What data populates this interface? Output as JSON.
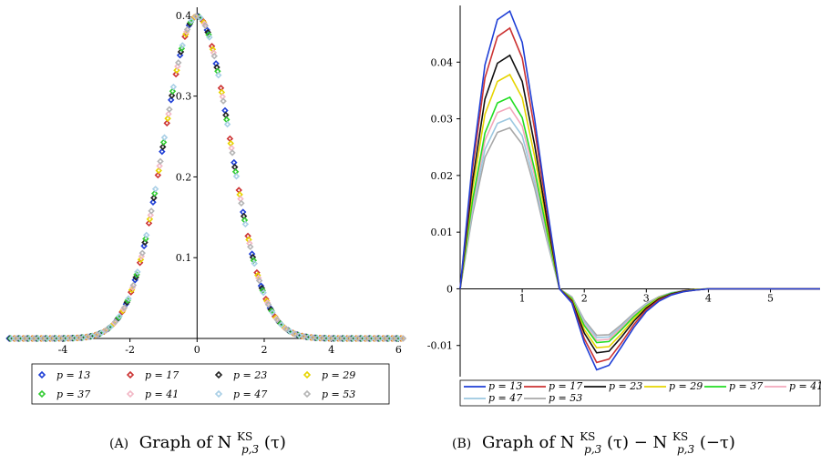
{
  "figure": {
    "caption_a": {
      "tag": "(A)",
      "text": "Graph of N",
      "sup": "KS",
      "sub": "p,3",
      "arg": "(τ)"
    },
    "caption_b": {
      "tag": "(B)",
      "text": "Graph of N",
      "sup": "KS",
      "sub": "p,3",
      "arg": "(τ) − N",
      "sup2": "KS",
      "sub2": "p,3",
      "arg2": "(−τ)"
    }
  },
  "chart_data": [
    {
      "type": "scatter",
      "title": "",
      "xlabel": "",
      "ylabel": "",
      "xlim": [
        -5.6,
        6.1
      ],
      "ylim": [
        0,
        0.41
      ],
      "xticks": [
        -4,
        -2,
        0,
        2,
        4,
        6
      ],
      "xtick_labels": [
        "-4",
        "-2",
        "0",
        "2",
        "4",
        "6"
      ],
      "yticks": [
        0.1,
        0.2,
        0.3,
        0.4
      ],
      "ytick_labels": [
        "0.1",
        "0.2",
        "0.3",
        "0.4"
      ],
      "legend_position": "bottom",
      "series": [
        {
          "name": "p = 13",
          "color": "#1f3fd6"
        },
        {
          "name": "p = 17",
          "color": "#cc3333"
        },
        {
          "name": "p = 23",
          "color": "#222222"
        },
        {
          "name": "p = 29",
          "color": "#e6d400"
        },
        {
          "name": "p = 37",
          "color": "#33cc33"
        },
        {
          "name": "p = 41",
          "color": "#f2b8c6"
        },
        {
          "name": "p = 47",
          "color": "#a9cfe6"
        },
        {
          "name": "p = 53",
          "color": "#b5b5b5"
        }
      ],
      "shape": "standard normal density approximation",
      "x_start": -5.6,
      "x_step": 0.134
    },
    {
      "type": "line",
      "title": "",
      "xlabel": "",
      "ylabel": "",
      "xlim": [
        0,
        5.8
      ],
      "ylim": [
        -0.0155,
        0.05
      ],
      "xticks": [
        1,
        2,
        3,
        4,
        5
      ],
      "xtick_labels": [
        "1",
        "2",
        "3",
        "4",
        "5"
      ],
      "yticks": [
        -0.01,
        0,
        0.01,
        0.02,
        0.03,
        0.04
      ],
      "ytick_labels": [
        "-0.01",
        "0",
        "0.01",
        "0.02",
        "0.03",
        "0.04"
      ],
      "legend_position": "bottom",
      "x": [
        0,
        0.2,
        0.4,
        0.6,
        0.8,
        1.0,
        1.2,
        1.4,
        1.6,
        1.8,
        2.0,
        2.2,
        2.4,
        2.6,
        2.8,
        3.0,
        3.2,
        3.4,
        3.6,
        3.8,
        4.0,
        4.2,
        4.4,
        4.6,
        4.8,
        5.0,
        5.2,
        5.4,
        5.6,
        5.8
      ],
      "series": [
        {
          "name": "p = 13",
          "color": "#1f3fd6",
          "values": [
            0,
            0.0225,
            0.0395,
            0.0475,
            0.049,
            0.0435,
            0.03,
            0.0145,
            0.0,
            -0.0025,
            -0.0095,
            -0.0143,
            -0.0135,
            -0.0102,
            -0.0068,
            -0.004,
            -0.0022,
            -0.0011,
            -0.0005,
            -0.0002,
            0,
            0,
            0,
            0,
            0,
            0,
            0,
            0,
            0,
            0
          ]
        },
        {
          "name": "p = 17",
          "color": "#cc3333",
          "values": [
            0,
            0.0212,
            0.0372,
            0.0445,
            0.046,
            0.0407,
            0.0282,
            0.0136,
            0.0,
            -0.0023,
            -0.0088,
            -0.013,
            -0.0124,
            -0.0095,
            -0.0063,
            -0.0037,
            -0.002,
            -0.001,
            -0.0005,
            -0.0002,
            0,
            0,
            0,
            0,
            0,
            0,
            0,
            0,
            0,
            0
          ]
        },
        {
          "name": "p = 23",
          "color": "#111111",
          "values": [
            0,
            0.019,
            0.0335,
            0.0398,
            0.0412,
            0.0366,
            0.0254,
            0.0122,
            0.0,
            -0.0021,
            -0.0078,
            -0.0113,
            -0.011,
            -0.0085,
            -0.0057,
            -0.0034,
            -0.0018,
            -0.0009,
            -0.0004,
            -0.0002,
            0,
            0,
            0,
            0,
            0,
            0,
            0,
            0,
            0,
            0
          ]
        },
        {
          "name": "p = 29",
          "color": "#e6d400",
          "values": [
            0,
            0.0175,
            0.0308,
            0.0366,
            0.0378,
            0.0337,
            0.0234,
            0.0113,
            0.0,
            -0.0019,
            -0.0072,
            -0.0104,
            -0.0102,
            -0.0079,
            -0.0053,
            -0.0032,
            -0.0017,
            -0.0009,
            -0.0004,
            -0.0001,
            0,
            0,
            0,
            0,
            0,
            0,
            0,
            0,
            0,
            0
          ]
        },
        {
          "name": "p = 37",
          "color": "#22dd22",
          "values": [
            0,
            0.0156,
            0.0275,
            0.0328,
            0.0338,
            0.0302,
            0.021,
            0.0101,
            0.0,
            -0.0017,
            -0.0065,
            -0.0095,
            -0.0093,
            -0.0072,
            -0.0049,
            -0.003,
            -0.0016,
            -0.0008,
            -0.0004,
            -0.0001,
            0,
            0,
            0,
            0,
            0,
            0,
            0,
            0,
            0,
            0
          ]
        },
        {
          "name": "p = 41",
          "color": "#f2a8bc",
          "values": [
            0,
            0.0148,
            0.0262,
            0.0311,
            0.032,
            0.0287,
            0.02,
            0.0096,
            0.0,
            -0.0016,
            -0.0062,
            -0.0091,
            -0.0089,
            -0.0069,
            -0.0047,
            -0.0029,
            -0.0015,
            -0.0008,
            -0.0003,
            -0.0001,
            0,
            0,
            0,
            0,
            0,
            0,
            0,
            0,
            0,
            0
          ]
        },
        {
          "name": "p = 47",
          "color": "#9cc8e0",
          "values": [
            0,
            0.0139,
            0.0246,
            0.0292,
            0.0301,
            0.027,
            0.0188,
            0.009,
            0.0,
            -0.0015,
            -0.0058,
            -0.0086,
            -0.0085,
            -0.0066,
            -0.0045,
            -0.0027,
            -0.0015,
            -0.0007,
            -0.0003,
            -0.0001,
            0,
            0,
            0,
            0,
            0,
            0,
            0,
            0,
            0,
            0
          ]
        },
        {
          "name": "p = 53",
          "color": "#a8a8a8",
          "values": [
            0,
            0.0131,
            0.0232,
            0.0276,
            0.0284,
            0.0255,
            0.0178,
            0.0085,
            0.0,
            -0.0014,
            -0.0055,
            -0.0082,
            -0.0081,
            -0.0063,
            -0.0043,
            -0.0026,
            -0.0014,
            -0.0007,
            -0.0003,
            -0.0001,
            0,
            0,
            0,
            0,
            0,
            0,
            0,
            0,
            0,
            0
          ]
        }
      ]
    }
  ]
}
